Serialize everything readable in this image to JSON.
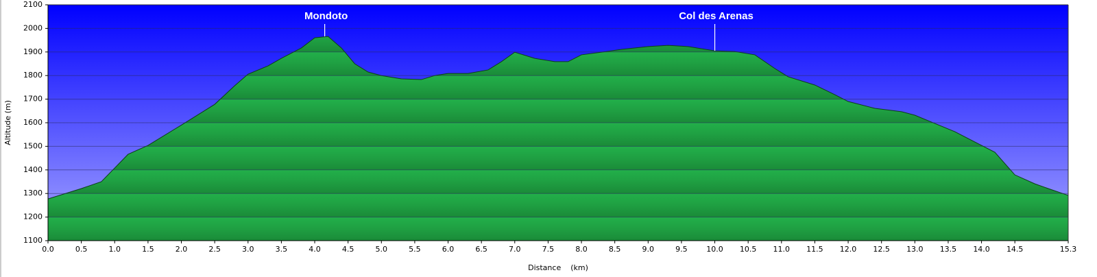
{
  "chart_data": {
    "type": "area",
    "x_label": "Distance    (km)",
    "y_label": "Altitude (m)",
    "color": "#22aa44",
    "x": [
      0.0,
      0.5,
      0.8,
      1.0,
      1.2,
      1.5,
      2.0,
      2.5,
      2.8,
      3.0,
      3.3,
      3.5,
      3.8,
      4.0,
      4.2,
      4.4,
      4.6,
      4.8,
      5.0,
      5.3,
      5.6,
      5.8,
      6.0,
      6.3,
      6.6,
      6.8,
      7.0,
      7.3,
      7.6,
      7.8,
      8.0,
      8.3,
      8.6,
      9.0,
      9.3,
      9.6,
      10.0,
      10.3,
      10.6,
      10.9,
      11.1,
      11.5,
      11.8,
      12.0,
      12.4,
      12.8,
      13.0,
      13.3,
      13.6,
      14.0,
      14.2,
      14.5,
      14.8,
      15.0,
      15.3
    ],
    "values": [
      1277,
      1321,
      1350,
      1408,
      1466,
      1504,
      1590,
      1678,
      1757,
      1806,
      1841,
      1873,
      1917,
      1960,
      1966,
      1917,
      1850,
      1815,
      1800,
      1786,
      1783,
      1800,
      1809,
      1809,
      1824,
      1859,
      1899,
      1873,
      1859,
      1859,
      1888,
      1899,
      1911,
      1923,
      1928,
      1923,
      1905,
      1902,
      1888,
      1830,
      1795,
      1760,
      1719,
      1690,
      1661,
      1647,
      1632,
      1597,
      1562,
      1504,
      1475,
      1379,
      1341,
      1321,
      1292
    ],
    "xlim": [
      0,
      15.3
    ],
    "ylim": [
      1100,
      2100
    ],
    "xticks": [
      {
        "value": 0,
        "label": "0.0"
      },
      0.5,
      {
        "value": 1,
        "label": "1.0"
      },
      1.5,
      {
        "value": 2,
        "label": "2.0"
      },
      2.5,
      {
        "value": 3,
        "label": "3.0"
      },
      3.5,
      {
        "value": 4,
        "label": "4.0"
      },
      4.5,
      {
        "value": 5,
        "label": "5.0"
      },
      5.5,
      {
        "value": 6,
        "label": "6.0"
      },
      6.5,
      {
        "value": 7,
        "label": "7.0"
      },
      7.5,
      {
        "value": 8,
        "label": "8.0"
      },
      8.5,
      {
        "value": 9,
        "label": "9.0"
      },
      9.5,
      {
        "value": 10,
        "label": "10.0"
      },
      10.5,
      {
        "value": 11,
        "label": "11.0"
      },
      11.5,
      {
        "value": 12,
        "label": "12.0"
      },
      12.5,
      {
        "value": 13,
        "label": "13.0"
      },
      13.5,
      {
        "value": 14,
        "label": "14.0"
      },
      14.5,
      15.3
    ],
    "yticks": [
      1100,
      1200,
      1300,
      1400,
      1500,
      1600,
      1700,
      1800,
      1900,
      2000,
      2100
    ],
    "grid": true,
    "annotations": [
      {
        "text": "Mondoto",
        "x": 4.15,
        "y": 1966
      },
      {
        "text": "Col des Arenas",
        "x": 10.0,
        "y": 1905
      }
    ]
  }
}
